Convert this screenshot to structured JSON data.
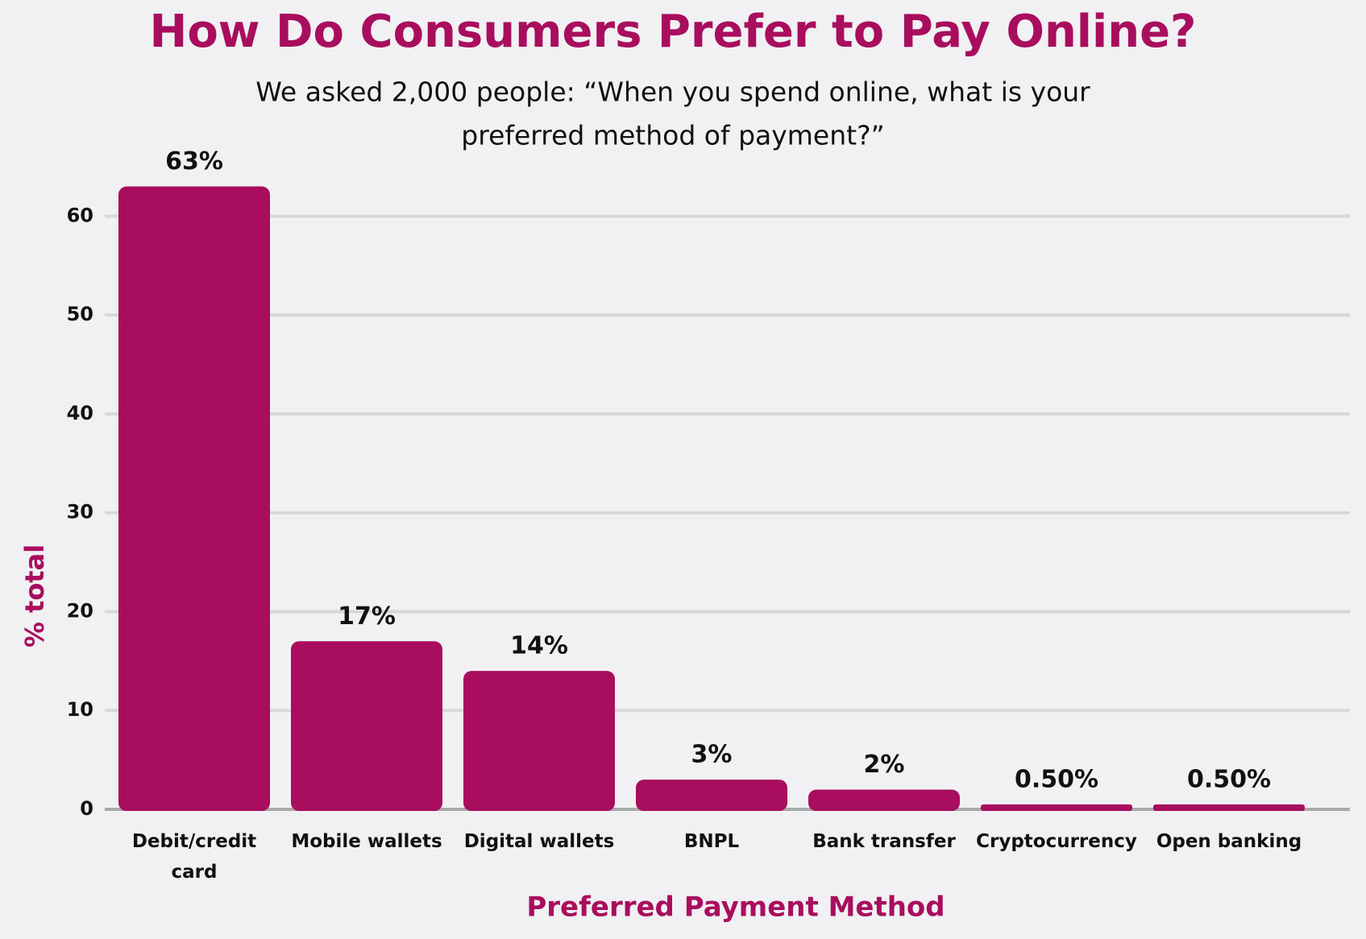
{
  "chart_data": {
    "type": "bar",
    "title": "How Do Consumers Prefer to Pay Online?",
    "subtitle": [
      "We asked 2,000 people: “When you spend online, what is your",
      "preferred method of payment?”"
    ],
    "x_label": "Preferred Payment Method",
    "y_label": "% total",
    "categories": [
      "Debit/credit card",
      "Mobile wallets",
      "Digital wallets",
      "BNPL",
      "Bank transfer",
      "Cryptocurrency",
      "Open banking"
    ],
    "values": [
      63,
      17,
      14,
      3,
      2,
      0.5,
      0.5
    ],
    "value_labels": [
      "63%",
      "17%",
      "14%",
      "3%",
      "2%",
      "0.50%",
      "0.50%"
    ],
    "color": "#a90d5e",
    "ylim": [
      0,
      65
    ],
    "yticks": [
      0,
      10,
      20,
      30,
      40,
      50,
      60
    ],
    "grid": true
  }
}
